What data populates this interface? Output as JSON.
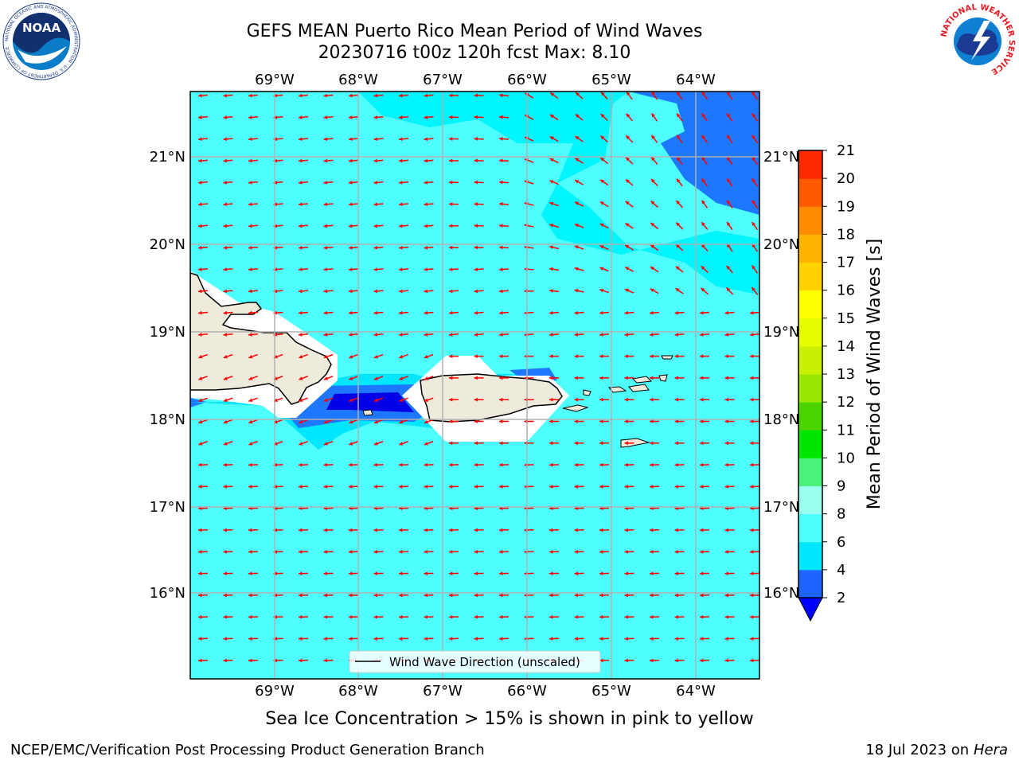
{
  "header": {
    "title_line1": "GEFS MEAN Puerto Rico Mean Period of Wind Waves",
    "title_line2": "20230716 t00z 120h fcst   Max: 8.10"
  },
  "logos": {
    "noaa_text": "NOAA",
    "noaa_ring": "NATIONAL OCEANIC AND ATMOSPHERIC ADMINISTRATION · U.S. DEPARTMENT OF COMMERCE",
    "nws_ring": "NATIONAL WEATHER SERVICE"
  },
  "map": {
    "lon_labels": [
      "69°W",
      "68°W",
      "67°W",
      "66°W",
      "65°W",
      "64°W"
    ],
    "lat_labels": [
      "21°N",
      "20°N",
      "19°N",
      "18°N",
      "17°N",
      "16°N"
    ],
    "legend_label": "Wind Wave Direction (unscaled)",
    "arrow_color": "#ff0000",
    "ocean_color": "#4dffff",
    "land_color": "#efebdc"
  },
  "colorbar": {
    "label": "Mean Period of Wind Waves [s]",
    "ticks": [
      "2",
      "4",
      "6",
      "8",
      "9",
      "10",
      "11",
      "12",
      "13",
      "14",
      "15",
      "16",
      "17",
      "18",
      "19",
      "20",
      "21"
    ],
    "colors": [
      "#1e64ff",
      "#00e6ff",
      "#4dffff",
      "#99fff0",
      "#4bf27a",
      "#00e600",
      "#4bd400",
      "#99e600",
      "#c8f000",
      "#e6ff00",
      "#ffff00",
      "#ffd200",
      "#ffb400",
      "#ff8c00",
      "#ff5a00",
      "#ff2a00"
    ],
    "under_color": "#0000ff"
  },
  "footer": {
    "note": "Sea Ice Concentration > 15% is shown in pink to yellow",
    "left": "NCEP/EMC/Verification Post Processing Product Generation Branch",
    "right_date": "18 Jul 2023 on ",
    "right_host": "Hera"
  }
}
